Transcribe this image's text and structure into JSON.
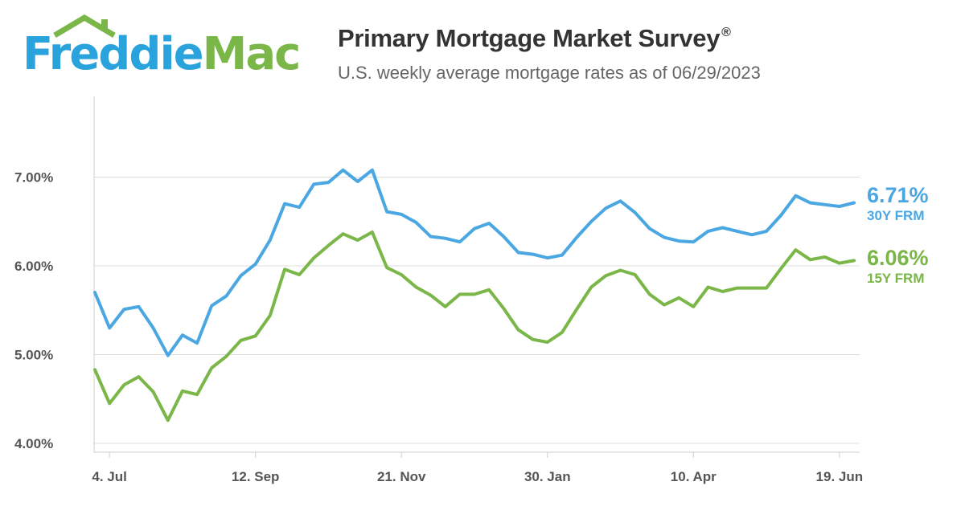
{
  "logo": {
    "part1": "Freddie",
    "part2": "Mac",
    "blue": "#2aa3dd",
    "green": "#7ab648"
  },
  "header": {
    "title": "Primary Mortgage Market Survey",
    "title_mark": "®",
    "subtitle": "U.S. weekly average mortgage rates as of 06/29/2023"
  },
  "callouts": {
    "frm30": {
      "value": "6.71%",
      "label": "30Y FRM"
    },
    "frm15": {
      "value": "6.06%",
      "label": "15Y FRM"
    }
  },
  "chart_data": {
    "type": "line",
    "title": "Primary Mortgage Market Survey",
    "subtitle": "U.S. weekly average mortgage rates as of 06/29/2023",
    "xlabel": "",
    "ylabel": "",
    "ylim": [
      3.9,
      7.99
    ],
    "yticks": [
      4.0,
      5.0,
      6.0,
      7.0
    ],
    "ytick_labels": [
      "4.00%",
      "5.00%",
      "6.00%",
      "7.00%"
    ],
    "xticks": [
      {
        "label": "4. Jul",
        "index": 1
      },
      {
        "label": "12. Sep",
        "index": 11
      },
      {
        "label": "21. Nov",
        "index": 21
      },
      {
        "label": "30. Jan",
        "index": 31
      },
      {
        "label": "10. Apr",
        "index": 41
      },
      {
        "label": "19. Jun",
        "index": 51
      }
    ],
    "grid": true,
    "x": [
      "2022-06-30",
      "2022-07-07",
      "2022-07-14",
      "2022-07-21",
      "2022-07-28",
      "2022-08-04",
      "2022-08-11",
      "2022-08-18",
      "2022-08-25",
      "2022-09-01",
      "2022-09-08",
      "2022-09-15",
      "2022-09-22",
      "2022-09-29",
      "2022-10-06",
      "2022-10-13",
      "2022-10-20",
      "2022-10-27",
      "2022-11-03",
      "2022-11-10",
      "2022-11-17",
      "2022-11-23",
      "2022-12-01",
      "2022-12-08",
      "2022-12-15",
      "2022-12-22",
      "2022-12-29",
      "2023-01-05",
      "2023-01-12",
      "2023-01-19",
      "2023-01-26",
      "2023-02-02",
      "2023-02-09",
      "2023-02-16",
      "2023-02-23",
      "2023-03-02",
      "2023-03-09",
      "2023-03-16",
      "2023-03-23",
      "2023-03-30",
      "2023-04-06",
      "2023-04-13",
      "2023-04-20",
      "2023-04-27",
      "2023-05-04",
      "2023-05-11",
      "2023-05-18",
      "2023-05-25",
      "2023-06-01",
      "2023-06-08",
      "2023-06-15",
      "2023-06-22",
      "2023-06-29"
    ],
    "series": [
      {
        "name": "30Y FRM",
        "color": "#4aa7e2",
        "values": [
          5.7,
          5.3,
          5.51,
          5.54,
          5.3,
          4.99,
          5.22,
          5.13,
          5.55,
          5.66,
          5.89,
          6.02,
          6.29,
          6.7,
          6.66,
          6.92,
          6.94,
          7.08,
          6.95,
          7.08,
          6.61,
          6.58,
          6.49,
          6.33,
          6.31,
          6.27,
          6.42,
          6.48,
          6.33,
          6.15,
          6.13,
          6.09,
          6.12,
          6.32,
          6.5,
          6.65,
          6.73,
          6.6,
          6.42,
          6.32,
          6.28,
          6.27,
          6.39,
          6.43,
          6.39,
          6.35,
          6.39,
          6.57,
          6.79,
          6.71,
          6.69,
          6.67,
          6.71
        ]
      },
      {
        "name": "15Y FRM",
        "color": "#7ab648",
        "values": [
          4.83,
          4.45,
          4.66,
          4.75,
          4.58,
          4.26,
          4.59,
          4.55,
          4.85,
          4.98,
          5.16,
          5.21,
          5.44,
          5.96,
          5.9,
          6.09,
          6.23,
          6.36,
          6.29,
          6.38,
          5.98,
          5.9,
          5.76,
          5.67,
          5.54,
          5.68,
          5.68,
          5.73,
          5.52,
          5.28,
          5.17,
          5.14,
          5.25,
          5.51,
          5.76,
          5.89,
          5.95,
          5.9,
          5.68,
          5.56,
          5.64,
          5.54,
          5.76,
          5.71,
          5.75,
          5.75,
          5.75,
          5.97,
          6.18,
          6.07,
          6.1,
          6.03,
          6.06
        ]
      }
    ],
    "legend": "right"
  }
}
